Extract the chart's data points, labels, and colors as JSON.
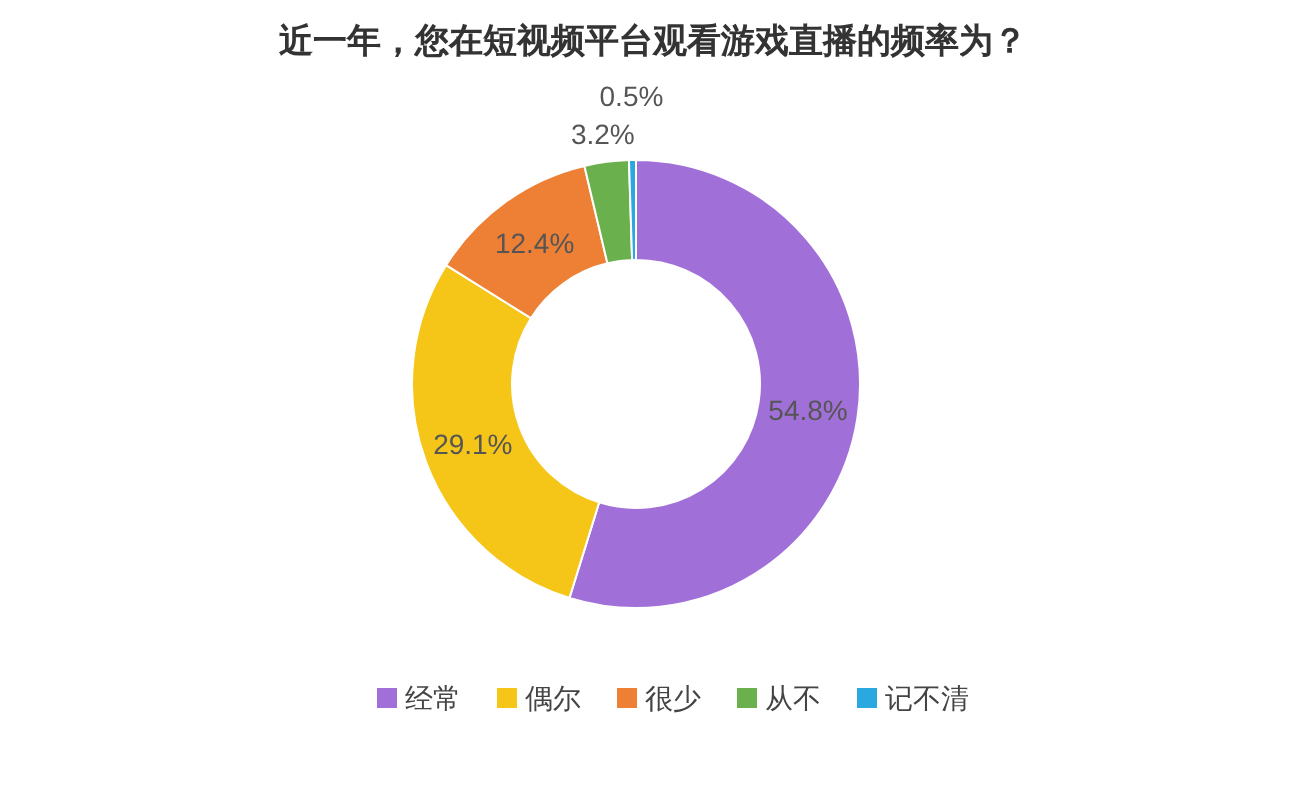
{
  "chart_data": {
    "type": "donut",
    "title": "近一年，您在短视频平台观看游戏直播的频率为？",
    "categories": [
      "经常",
      "偶尔",
      "很少",
      "从不",
      "记不清"
    ],
    "values": [
      54.8,
      29.1,
      12.4,
      3.2,
      0.5
    ],
    "colors": [
      "#a070d8",
      "#f5c518",
      "#ee8035",
      "#6ab04c",
      "#2aa8e0"
    ],
    "value_labels": [
      "54.8%",
      "29.1%",
      "12.4%",
      "3.2%",
      "0.5%"
    ],
    "legend": "bottom"
  }
}
